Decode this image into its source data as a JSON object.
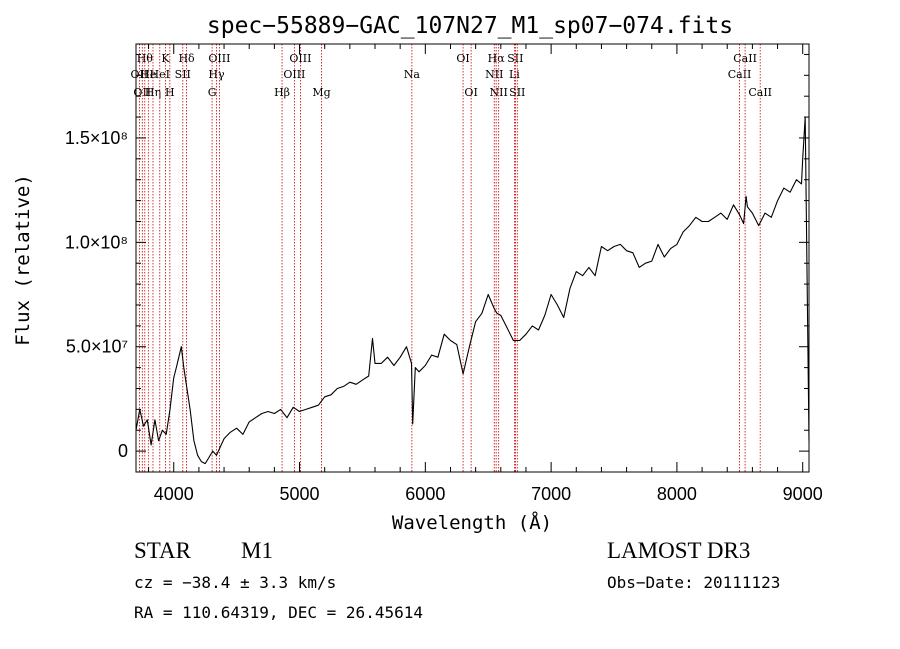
{
  "chart_data": {
    "type": "line",
    "title": "spec−55889−GAC_107N27_M1_sp07−074.fits",
    "xlabel": "Wavelength (Å)",
    "ylabel": "Flux (relative)",
    "xlim": [
      3700,
      9050
    ],
    "ylim": [
      -10000000.0,
      195000000.0
    ],
    "xticks": [
      {
        "value": 4000,
        "label": "4000"
      },
      {
        "value": 5000,
        "label": "5000"
      },
      {
        "value": 6000,
        "label": "6000"
      },
      {
        "value": 7000,
        "label": "7000"
      },
      {
        "value": 8000,
        "label": "8000"
      },
      {
        "value": 9000,
        "label": "9000"
      }
    ],
    "yticks": [
      {
        "value": 0,
        "label": "0"
      },
      {
        "value": 50000000.0,
        "label": "5.0×10⁷"
      },
      {
        "value": 100000000.0,
        "label": "1.0×10⁸"
      },
      {
        "value": 150000000.0,
        "label": "1.5×10⁸"
      }
    ],
    "series": [
      {
        "color": "#000000",
        "x": [
          3700,
          3730,
          3760,
          3790,
          3820,
          3850,
          3880,
          3910,
          3940,
          3970,
          4000,
          4020,
          4040,
          4060,
          4080,
          4100,
          4130,
          4160,
          4190,
          4220,
          4250,
          4280,
          4310,
          4340,
          4370,
          4400,
          4450,
          4500,
          4550,
          4600,
          4650,
          4700,
          4750,
          4800,
          4850,
          4900,
          4950,
          5000,
          5050,
          5100,
          5150,
          5200,
          5250,
          5300,
          5350,
          5400,
          5450,
          5500,
          5550,
          5580,
          5600,
          5650,
          5700,
          5750,
          5800,
          5850,
          5890,
          5900,
          5920,
          5950,
          6000,
          6050,
          6100,
          6150,
          6200,
          6250,
          6300,
          6350,
          6400,
          6450,
          6500,
          6550,
          6570,
          6600,
          6650,
          6700,
          6750,
          6800,
          6850,
          6900,
          6950,
          7000,
          7050,
          7100,
          7150,
          7200,
          7250,
          7300,
          7350,
          7400,
          7450,
          7500,
          7550,
          7600,
          7650,
          7700,
          7750,
          7800,
          7850,
          7900,
          7950,
          8000,
          8050,
          8100,
          8150,
          8200,
          8250,
          8300,
          8350,
          8400,
          8450,
          8500,
          8530,
          8550,
          8560,
          8600,
          8650,
          8700,
          8750,
          8800,
          8850,
          8900,
          8950,
          8990,
          9000,
          9020,
          9050
        ],
        "y": [
          10000000.0,
          20000000.0,
          12000000.0,
          15000000.0,
          3000000.0,
          15000000.0,
          5000000.0,
          10000000.0,
          8000000.0,
          20000000.0,
          35000000.0,
          40000000.0,
          45000000.0,
          50000000.0,
          40000000.0,
          32000000.0,
          20000000.0,
          5000000.0,
          -2000000.0,
          -5000000.0,
          -6000000.0,
          -3000000.0,
          0.0,
          -2000000.0,
          2000000.0,
          6000000.0,
          9000000.0,
          11000000.0,
          8000000.0,
          14000000.0,
          16000000.0,
          18000000.0,
          19000000.0,
          18000000.0,
          20000000.0,
          16000000.0,
          21000000.0,
          19000000.0,
          20000000.0,
          21000000.0,
          22000000.0,
          26000000.0,
          27000000.0,
          30000000.0,
          31000000.0,
          33000000.0,
          32000000.0,
          34000000.0,
          36000000.0,
          54000000.0,
          42000000.0,
          42000000.0,
          45000000.0,
          41000000.0,
          45000000.0,
          50000000.0,
          42000000.0,
          13000000.0,
          40000000.0,
          38000000.0,
          41000000.0,
          46000000.0,
          45000000.0,
          56000000.0,
          53000000.0,
          51000000.0,
          37000000.0,
          50000000.0,
          62000000.0,
          66000000.0,
          75000000.0,
          68000000.0,
          66000000.0,
          65000000.0,
          59000000.0,
          53000000.0,
          53000000.0,
          56000000.0,
          60000000.0,
          58000000.0,
          65000000.0,
          75000000.0,
          70000000.0,
          64000000.0,
          78000000.0,
          86000000.0,
          84000000.0,
          88000000.0,
          84000000.0,
          98000000.0,
          96000000.0,
          98000000.0,
          99000000.0,
          96000000.0,
          95000000.0,
          88000000.0,
          90000000.0,
          91000000.0,
          99000000.0,
          93000000.0,
          97000000.0,
          99000000.0,
          105000000.0,
          108000000.0,
          112000000.0,
          110000000.0,
          110000000.0,
          112000000.0,
          114000000.0,
          111000000.0,
          118000000.0,
          113000000.0,
          109000000.0,
          122000000.0,
          117000000.0,
          114000000.0,
          108000000.0,
          114000000.0,
          112000000.0,
          120000000.0,
          126000000.0,
          124000000.0,
          130000000.0,
          128000000.0,
          140000000.0,
          160000000.0,
          5000000.0
        ]
      }
    ],
    "lines": [
      {
        "wl": 3727,
        "label": "OII",
        "row": 2
      },
      {
        "wl": 3750,
        "label": "OII",
        "row": 3
      },
      {
        "wl": 3770,
        "label": "Hθ",
        "row": 1
      },
      {
        "wl": 3798,
        "label": "He",
        "row": 2
      },
      {
        "wl": 3835,
        "label": "Hη",
        "row": 3
      },
      {
        "wl": 3889,
        "label": "HeI",
        "row": 2
      },
      {
        "wl": 3934,
        "label": "K",
        "row": 1
      },
      {
        "wl": 3969,
        "label": "H",
        "row": 3
      },
      {
        "wl": 4072,
        "label": "SII",
        "row": 2
      },
      {
        "wl": 4102,
        "label": "Hδ",
        "row": 1
      },
      {
        "wl": 4340,
        "label": "Hγ",
        "row": 2
      },
      {
        "wl": 4363,
        "label": "OIII",
        "row": 1
      },
      {
        "wl": 4305,
        "label": "G",
        "row": 3
      },
      {
        "wl": 4861,
        "label": "Hβ",
        "row": 3
      },
      {
        "wl": 4959,
        "label": "OIII",
        "row": 2
      },
      {
        "wl": 5007,
        "label": "OIII",
        "row": 1
      },
      {
        "wl": 5175,
        "label": "Mg",
        "row": 3
      },
      {
        "wl": 5893,
        "label": "Na",
        "row": 2
      },
      {
        "wl": 6300,
        "label": "OI",
        "row": 1
      },
      {
        "wl": 6364,
        "label": "OI",
        "row": 3
      },
      {
        "wl": 6548,
        "label": "NII",
        "row": 2
      },
      {
        "wl": 6563,
        "label": "Hα",
        "row": 1
      },
      {
        "wl": 6583,
        "label": "NII",
        "row": 3
      },
      {
        "wl": 6708,
        "label": "Li",
        "row": 2
      },
      {
        "wl": 6716,
        "label": "SII",
        "row": 1
      },
      {
        "wl": 6731,
        "label": "SII",
        "row": 3
      },
      {
        "wl": 8498,
        "label": "CaII",
        "row": 2
      },
      {
        "wl": 8542,
        "label": "CaII",
        "row": 1
      },
      {
        "wl": 8662,
        "label": "CaII",
        "row": 3
      }
    ]
  },
  "info": {
    "class": "STAR",
    "subclass": "M1",
    "survey": "LAMOST DR3",
    "redshift": "cz = −38.4 ± 3.3 km/s",
    "obs_date": "Obs−Date: 20111123",
    "coords": "RA = 110.64319, DEC =  26.45614"
  }
}
